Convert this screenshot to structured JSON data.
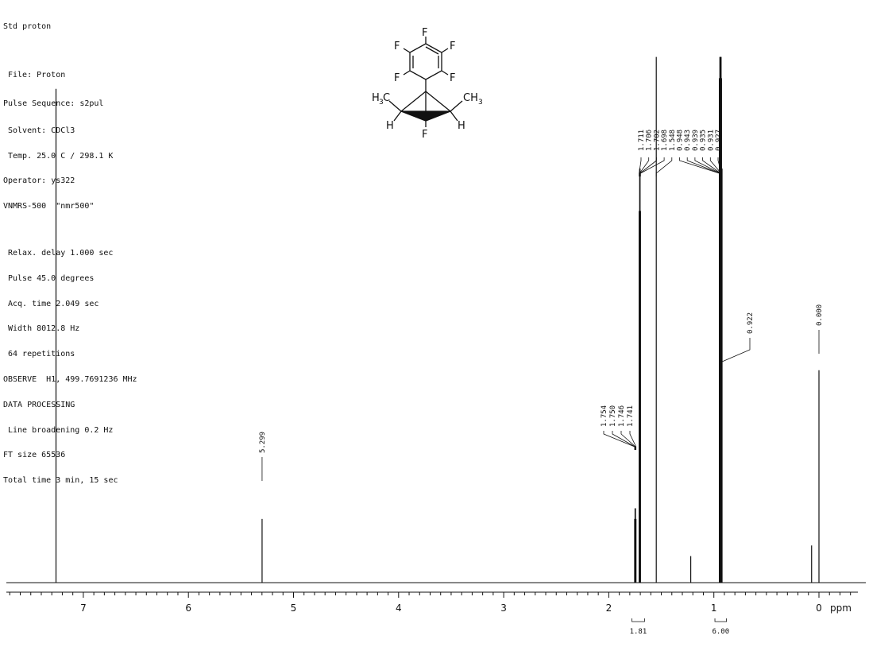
{
  "header": {
    "title": "Std proton",
    "file": "File: Proton",
    "pulse_sequence": "Pulse Sequence: s2pul",
    "params": [
      "Solvent: CDCl3",
      "Temp. 25.0 C / 298.1 K",
      "Operator: ys322",
      "VNMRS-500  \"nmr500\""
    ],
    "acquisition": [
      "Relax. delay 1.000 sec",
      "Pulse 45.0 degrees",
      "Acq. time 2.049 sec",
      "Width 8012.8 Hz",
      "64 repetitions",
      "OBSERVE  H1, 499.7691236 MHz",
      "DATA PROCESSING",
      "Line broadening 0.2 Hz",
      "FT size 65536",
      "Total time 3 min, 15 sec"
    ]
  },
  "molecule": {
    "atoms": [
      "F",
      "F",
      "F",
      "F",
      "F",
      "F",
      "H",
      "H"
    ],
    "methyl": "CH",
    "methyl_sub": "3",
    "methyl_left": "H",
    "methyl_left_sub": "3",
    "methyl_left_tail": "C"
  },
  "chart_data": {
    "type": "line",
    "title": "",
    "xlabel": "ppm",
    "ylabel": "",
    "xlim": [
      7.8,
      -0.45
    ],
    "x_reversed": true,
    "grid": false,
    "x_ticks": [
      7,
      6,
      5,
      4,
      3,
      2,
      1,
      0
    ],
    "peaks": [
      {
        "ppm": 7.26,
        "height": 0.93
      },
      {
        "ppm": 5.299,
        "height": 0.12
      },
      {
        "ppm": 1.754,
        "height": 0.12
      },
      {
        "ppm": 1.75,
        "height": 0.14
      },
      {
        "ppm": 1.746,
        "height": 0.14
      },
      {
        "ppm": 1.741,
        "height": 0.12
      },
      {
        "ppm": 1.711,
        "height": 0.7
      },
      {
        "ppm": 1.706,
        "height": 0.78
      },
      {
        "ppm": 1.702,
        "height": 0.78
      },
      {
        "ppm": 1.698,
        "height": 0.7
      },
      {
        "ppm": 1.548,
        "height": 0.99
      },
      {
        "ppm": 1.22,
        "height": 0.05
      },
      {
        "ppm": 0.948,
        "height": 0.95
      },
      {
        "ppm": 0.943,
        "height": 0.99
      },
      {
        "ppm": 0.939,
        "height": 0.99
      },
      {
        "ppm": 0.935,
        "height": 0.99
      },
      {
        "ppm": 0.931,
        "height": 0.99
      },
      {
        "ppm": 0.927,
        "height": 0.95
      },
      {
        "ppm": 0.922,
        "height": 0.78
      },
      {
        "ppm": 0.07,
        "height": 0.07
      },
      {
        "ppm": 0.0,
        "height": 0.4
      }
    ],
    "peak_labels_top": [
      "1.711",
      "1.706",
      "1.702",
      "1.698",
      "1.548",
      "0.948",
      "0.943",
      "0.939",
      "0.935",
      "0.931",
      "0.927"
    ],
    "peak_labels_top_ppm": [
      1.711,
      1.706,
      1.702,
      1.698,
      1.548,
      0.948,
      0.943,
      0.939,
      0.935,
      0.931,
      0.927
    ],
    "peak_labels_mid": [
      {
        "label": "1.754",
        "ppm": 1.754
      },
      {
        "label": "1.750",
        "ppm": 1.75
      },
      {
        "label": "1.746",
        "ppm": 1.746
      },
      {
        "label": "1.741",
        "ppm": 1.741
      }
    ],
    "single_labels": [
      {
        "label": "5.299",
        "ppm": 5.299
      },
      {
        "label": "0.922",
        "ppm": 0.922
      },
      {
        "label": "0.000",
        "ppm": 0.0
      }
    ],
    "integrals": [
      {
        "label": "1.81",
        "from": 1.78,
        "to": 1.66
      },
      {
        "label": "6.00",
        "from": 0.99,
        "to": 0.88
      }
    ]
  }
}
